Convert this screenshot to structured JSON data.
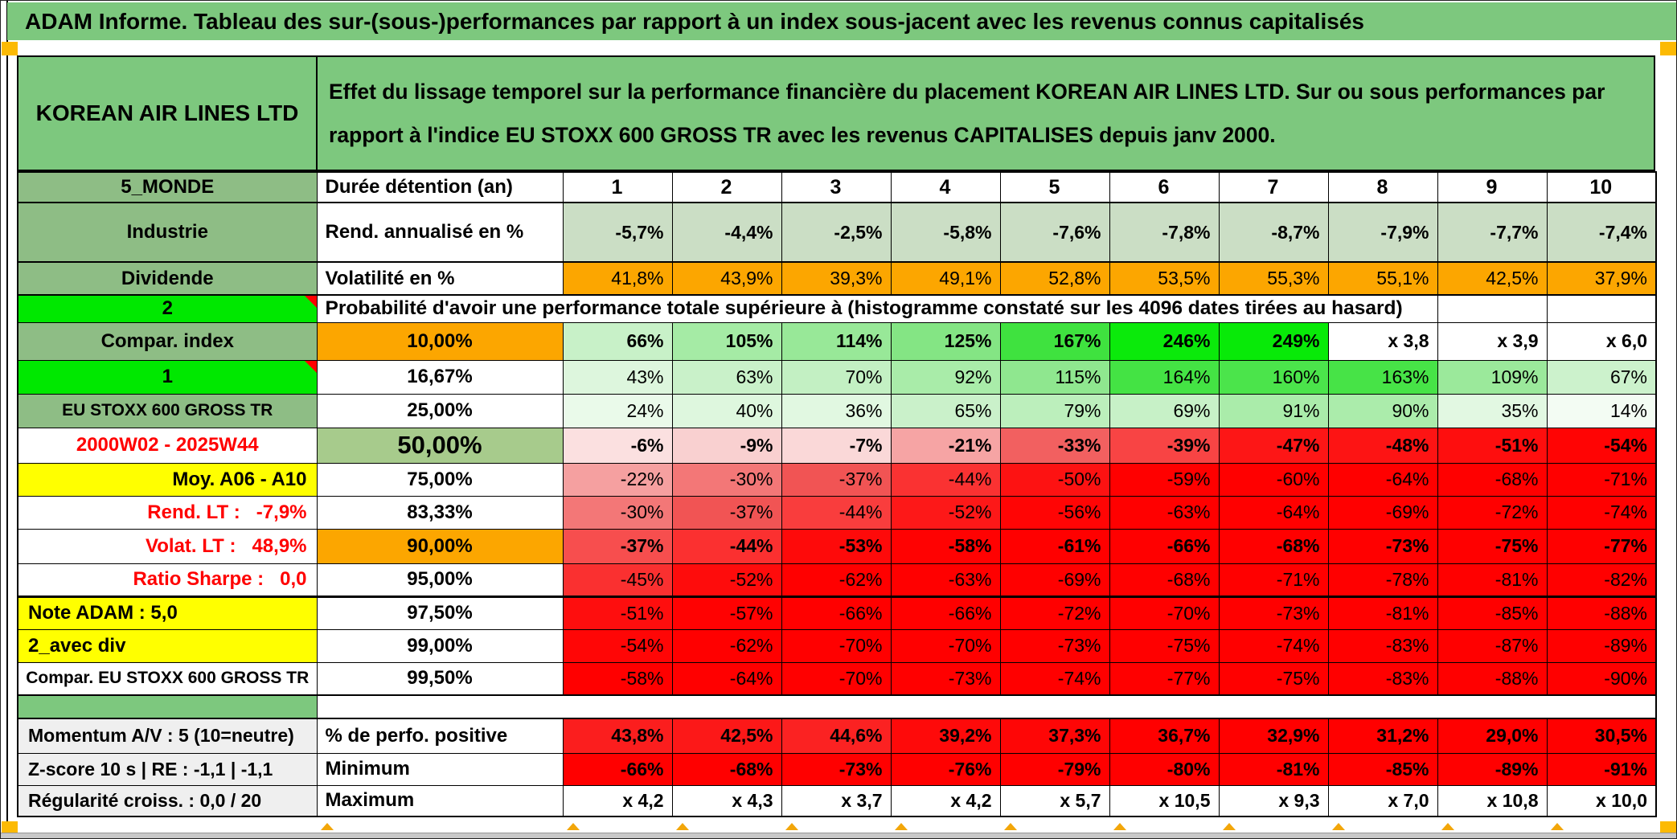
{
  "title": "ADAM Informe. Tableau des sur-(sous-)performances par rapport à un index sous-jacent avec les revenus connus capitalisés",
  "header": {
    "instrument": "KOREAN AIR LINES LTD",
    "description": "Effet du lissage temporel sur la performance financière du placement KOREAN AIR LINES LTD. Sur ou sous performances par rapport à l'indice EU STOXX 600 GROSS TR avec les revenus CAPITALISES depuis janv 2000."
  },
  "colors": {
    "header_green": "#7DC87E",
    "label_green": "#8EBD85",
    "bright_green": "#00E800",
    "orange": "#FCA600",
    "yellow": "#FFFF00",
    "sage": "#A7CB8C",
    "muted_green_row": "#CBDEC5",
    "full_red": "#FF0000",
    "gray_label": "#EFEFEF",
    "marker_orange": "#FCBA04"
  },
  "table": {
    "prob_banner": "Probabilité d'avoir une performance totale supérieure à (histogramme constaté sur les 4096 dates tirées au hasard)",
    "rows": [
      {
        "label": {
          "t": "5_MONDE",
          "bg": "#8EBD85",
          "a": "c"
        },
        "mid": {
          "t": "Durée détention (an)",
          "bg": "#FFFFFF",
          "a": "l"
        },
        "header_cells": true,
        "cells": [
          [
            "1",
            "#FFFFFF",
            1
          ],
          [
            "2",
            "#FFFFFF",
            1
          ],
          [
            "3",
            "#FFFFFF",
            1
          ],
          [
            "4",
            "#FFFFFF",
            1
          ],
          [
            "5",
            "#FFFFFF",
            1
          ],
          [
            "6",
            "#FFFFFF",
            1
          ],
          [
            "7",
            "#FFFFFF",
            1
          ],
          [
            "8",
            "#FFFFFF",
            1
          ],
          [
            "9",
            "#FFFFFF",
            1
          ],
          [
            "10",
            "#FFFFFF",
            1
          ]
        ]
      },
      {
        "label": {
          "t": "Industrie",
          "bg": "#8EBD85",
          "a": "c"
        },
        "mid": {
          "t": "Rend. annualisé en %",
          "bg": "#FFFFFF",
          "a": "l"
        },
        "cells": [
          [
            "-5,7%",
            "#CBDEC5",
            1
          ],
          [
            "-4,4%",
            "#CBDEC5",
            1
          ],
          [
            "-2,5%",
            "#CBDEC5",
            1
          ],
          [
            "-5,8%",
            "#CBDEC5",
            1
          ],
          [
            "-7,6%",
            "#CBDEC5",
            1
          ],
          [
            "-7,8%",
            "#CBDEC5",
            1
          ],
          [
            "-8,7%",
            "#CBDEC5",
            1
          ],
          [
            "-7,9%",
            "#CBDEC5",
            1
          ],
          [
            "-7,7%",
            "#CBDEC5",
            1
          ],
          [
            "-7,4%",
            "#CBDEC5",
            1
          ]
        ]
      },
      {
        "label": {
          "t": "Dividende",
          "bg": "#8EBD85",
          "a": "c"
        },
        "mid": {
          "t": "Volatilité en %",
          "bg": "#FFFFFF",
          "a": "l"
        },
        "cells": [
          [
            "41,8%",
            "#FCA600",
            0
          ],
          [
            "43,9%",
            "#FCA600",
            0
          ],
          [
            "39,3%",
            "#FCA600",
            0
          ],
          [
            "49,1%",
            "#FCA600",
            0
          ],
          [
            "52,8%",
            "#FCA600",
            0
          ],
          [
            "53,5%",
            "#FCA600",
            0
          ],
          [
            "55,3%",
            "#FCA600",
            0
          ],
          [
            "55,1%",
            "#FCA600",
            0
          ],
          [
            "42,5%",
            "#FCA600",
            0
          ],
          [
            "37,9%",
            "#FCA600",
            0
          ]
        ]
      },
      {
        "kind": "banner",
        "label": {
          "t": "2",
          "bg": "#00E800",
          "a": "c",
          "tri": 1
        },
        "empty_cells": 2
      },
      {
        "label": {
          "t": "Compar. index",
          "bg": "#8EBD85",
          "a": "c"
        },
        "mid": {
          "t": "10,00%",
          "bg": "#FCA600",
          "a": "c"
        },
        "cells": [
          [
            "66%",
            "#C8F1C8",
            1
          ],
          [
            "105%",
            "#A5EBA5",
            1
          ],
          [
            "114%",
            "#98E898",
            1
          ],
          [
            "125%",
            "#84E584",
            1
          ],
          [
            "167%",
            "#3FE23F",
            1
          ],
          [
            "246%",
            "#0BEA0B",
            1
          ],
          [
            "249%",
            "#08EA08",
            1
          ],
          [
            "x 3,8",
            "#FFFFFF",
            1
          ],
          [
            "x 3,9",
            "#FFFFFF",
            1
          ],
          [
            "x 6,0",
            "#FFFFFF",
            1
          ]
        ]
      },
      {
        "label": {
          "t": "1",
          "bg": "#00E800",
          "a": "c",
          "tri": 1
        },
        "mid": {
          "t": "16,67%",
          "bg": "#FFFFFF",
          "a": "c"
        },
        "cells": [
          [
            "43%",
            "#DDF6DD",
            0
          ],
          [
            "63%",
            "#C9F1C9",
            0
          ],
          [
            "70%",
            "#C3F0C3",
            0
          ],
          [
            "92%",
            "#A9ECA9",
            0
          ],
          [
            "115%",
            "#8FE78F",
            0
          ],
          [
            "164%",
            "#44E344",
            0
          ],
          [
            "160%",
            "#4BE44B",
            0
          ],
          [
            "163%",
            "#47E347",
            0
          ],
          [
            "109%",
            "#9BE99B",
            0
          ],
          [
            "67%",
            "#CCF2CC",
            0
          ]
        ]
      },
      {
        "label": {
          "t": "EU STOXX 600 GROSS TR",
          "bg": "#8EBD85",
          "a": "c",
          "sz": 1
        },
        "mid": {
          "t": "25,00%",
          "bg": "#FFFFFF",
          "a": "c"
        },
        "cells": [
          [
            "24%",
            "#EAFAEA",
            0
          ],
          [
            "40%",
            "#DEF7DE",
            0
          ],
          [
            "36%",
            "#E1F8E1",
            0
          ],
          [
            "65%",
            "#CAF1CA",
            0
          ],
          [
            "79%",
            "#BCEFBC",
            0
          ],
          [
            "69%",
            "#C7F1C7",
            0
          ],
          [
            "91%",
            "#AAECAA",
            0
          ],
          [
            "90%",
            "#ABECAB",
            0
          ],
          [
            "35%",
            "#E2F8E2",
            0
          ],
          [
            "14%",
            "#F3FCF3",
            0
          ]
        ]
      },
      {
        "label": {
          "t": "2000W02 - 2025W44",
          "bg": "#FFFFFF",
          "fg": "#FF0000",
          "a": "c"
        },
        "mid": {
          "t": "50,00%",
          "bg": "#A7CB8C",
          "a": "c",
          "big": 1
        },
        "cells": [
          [
            "-6%",
            "#FBE0E0",
            1
          ],
          [
            "-9%",
            "#F9D0D0",
            1
          ],
          [
            "-7%",
            "#FAD8D8",
            1
          ],
          [
            "-21%",
            "#F6A4A4",
            1
          ],
          [
            "-33%",
            "#F26060",
            1
          ],
          [
            "-39%",
            "#F84444",
            1
          ],
          [
            "-47%",
            "#FD1616",
            1
          ],
          [
            "-48%",
            "#FD1414",
            1
          ],
          [
            "-51%",
            "#FE0E0E",
            1
          ],
          [
            "-54%",
            "#FF0404",
            1
          ]
        ]
      },
      {
        "label": {
          "t": "Moy. A06 - A10",
          "bg": "#FFFF00",
          "a": "r"
        },
        "mid": {
          "t": "75,00%",
          "bg": "#FFFFFF",
          "a": "c"
        },
        "cells": [
          [
            "-22%",
            "#F5A0A0",
            0
          ],
          [
            "-30%",
            "#F37777",
            0
          ],
          [
            "-37%",
            "#F15454",
            0
          ],
          [
            "-44%",
            "#FA3232",
            0
          ],
          [
            "-50%",
            "#FD1212",
            0
          ],
          [
            "-59%",
            "#FF0000",
            0
          ],
          [
            "-60%",
            "#FF0000",
            0
          ],
          [
            "-64%",
            "#FF0000",
            0
          ],
          [
            "-68%",
            "#FF0000",
            0
          ],
          [
            "-71%",
            "#FF0000",
            0
          ]
        ]
      },
      {
        "label": {
          "t": "Rend. LT :   -7,9%",
          "bg": "#FFFFFF",
          "fg": "#FF0000",
          "a": "r"
        },
        "mid": {
          "t": "83,33%",
          "bg": "#FFFFFF",
          "a": "c"
        },
        "cells": [
          [
            "-30%",
            "#F37777",
            0
          ],
          [
            "-37%",
            "#F15454",
            0
          ],
          [
            "-44%",
            "#F93D3D",
            0
          ],
          [
            "-52%",
            "#FD1818",
            0
          ],
          [
            "-56%",
            "#FF0505",
            0
          ],
          [
            "-63%",
            "#FF0000",
            0
          ],
          [
            "-64%",
            "#FF0000",
            0
          ],
          [
            "-69%",
            "#FF0000",
            0
          ],
          [
            "-72%",
            "#FF0000",
            0
          ],
          [
            "-74%",
            "#FF0000",
            0
          ]
        ]
      },
      {
        "label": {
          "t": "Volat. LT :   48,9%",
          "bg": "#FFFFFF",
          "fg": "#FF0000",
          "a": "r"
        },
        "mid": {
          "t": "90,00%",
          "bg": "#FCA600",
          "a": "c"
        },
        "cells": [
          [
            "-37%",
            "#F74E4E",
            1
          ],
          [
            "-44%",
            "#FB3030",
            1
          ],
          [
            "-53%",
            "#FE0A0A",
            1
          ],
          [
            "-58%",
            "#FF0202",
            1
          ],
          [
            "-61%",
            "#FF0000",
            1
          ],
          [
            "-66%",
            "#FF0000",
            1
          ],
          [
            "-68%",
            "#FF0000",
            1
          ],
          [
            "-73%",
            "#FF0000",
            1
          ],
          [
            "-75%",
            "#FF0000",
            1
          ],
          [
            "-77%",
            "#FF0000",
            1
          ]
        ]
      },
      {
        "label": {
          "t": "Ratio Sharpe :   0,0",
          "bg": "#FFFFFF",
          "fg": "#FF0000",
          "a": "r"
        },
        "mid": {
          "t": "95,00%",
          "bg": "#FFFFFF",
          "a": "c"
        },
        "cells": [
          [
            "-45%",
            "#FA3030",
            0
          ],
          [
            "-52%",
            "#FE0C0C",
            0
          ],
          [
            "-62%",
            "#FF0000",
            0
          ],
          [
            "-63%",
            "#FF0000",
            0
          ],
          [
            "-69%",
            "#FF0000",
            0
          ],
          [
            "-68%",
            "#FF0000",
            0
          ],
          [
            "-71%",
            "#FF0000",
            0
          ],
          [
            "-78%",
            "#FF0000",
            0
          ],
          [
            "-81%",
            "#FF0000",
            0
          ],
          [
            "-82%",
            "#FF0000",
            0
          ]
        ]
      },
      {
        "label": {
          "t": "Note ADAM : 5,0",
          "bg": "#FFFF00",
          "a": "l"
        },
        "mid": {
          "t": "97,50%",
          "bg": "#FFFFFF",
          "a": "c"
        },
        "cells": [
          [
            "-51%",
            "#FE0E0E",
            0
          ],
          [
            "-57%",
            "#FF0202",
            0
          ],
          [
            "-66%",
            "#FF0000",
            0
          ],
          [
            "-66%",
            "#FF0000",
            0
          ],
          [
            "-72%",
            "#FF0000",
            0
          ],
          [
            "-70%",
            "#FF0000",
            0
          ],
          [
            "-73%",
            "#FF0000",
            0
          ],
          [
            "-81%",
            "#FF0000",
            0
          ],
          [
            "-85%",
            "#FF0000",
            0
          ],
          [
            "-88%",
            "#FF0000",
            0
          ]
        ]
      },
      {
        "label": {
          "t": "2_avec div",
          "bg": "#FFFF00",
          "a": "l"
        },
        "mid": {
          "t": "99,00%",
          "bg": "#FFFFFF",
          "a": "c"
        },
        "cells": [
          [
            "-54%",
            "#FF0606",
            0
          ],
          [
            "-62%",
            "#FF0000",
            0
          ],
          [
            "-70%",
            "#FF0000",
            0
          ],
          [
            "-70%",
            "#FF0000",
            0
          ],
          [
            "-73%",
            "#FF0000",
            0
          ],
          [
            "-75%",
            "#FF0000",
            0
          ],
          [
            "-74%",
            "#FF0000",
            0
          ],
          [
            "-83%",
            "#FF0000",
            0
          ],
          [
            "-87%",
            "#FF0000",
            0
          ],
          [
            "-89%",
            "#FF0000",
            0
          ]
        ]
      },
      {
        "label": {
          "t": "Compar. EU STOXX 600 GROSS TR",
          "bg": "#FFFFFF",
          "a": "c",
          "sz": 1
        },
        "mid": {
          "t": "99,50%",
          "bg": "#FFFFFF",
          "a": "c"
        },
        "cells": [
          [
            "-58%",
            "#FF0000",
            0
          ],
          [
            "-64%",
            "#FF0000",
            0
          ],
          [
            "-70%",
            "#FF0000",
            0
          ],
          [
            "-73%",
            "#FF0000",
            0
          ],
          [
            "-74%",
            "#FF0000",
            0
          ],
          [
            "-77%",
            "#FF0000",
            0
          ],
          [
            "-75%",
            "#FF0000",
            0
          ],
          [
            "-83%",
            "#FF0000",
            0
          ],
          [
            "-88%",
            "#FF0000",
            0
          ],
          [
            "-90%",
            "#FF0000",
            0
          ]
        ]
      },
      {
        "kind": "sep",
        "label": {
          "t": "",
          "bg": "#7DC87E",
          "a": "c"
        }
      },
      {
        "label": {
          "t": "Momentum A/V : 5 (10=neutre)",
          "bg": "#EFEFEF",
          "a": "l",
          "gray": 1
        },
        "mid": {
          "t": "% de perfo. positive",
          "bg": "#FFFFFF",
          "a": "l"
        },
        "cells": [
          [
            "43,8%",
            "#FB1E1E",
            1
          ],
          [
            "42,5%",
            "#FC1818",
            1
          ],
          [
            "44,6%",
            "#FB2222",
            1
          ],
          [
            "39,2%",
            "#FE0A0A",
            1
          ],
          [
            "37,3%",
            "#FE0606",
            1
          ],
          [
            "36,7%",
            "#FF0000",
            1
          ],
          [
            "32,9%",
            "#FF0000",
            1
          ],
          [
            "31,2%",
            "#FF0000",
            1
          ],
          [
            "29,0%",
            "#FF0000",
            1
          ],
          [
            "30,5%",
            "#FF0000",
            1
          ]
        ]
      },
      {
        "label": {
          "t": "Z-score 10 s | RE : -1,1 | -1,1",
          "bg": "#EFEFEF",
          "a": "l",
          "gray": 1
        },
        "mid": {
          "t": "Minimum",
          "bg": "#FFFFFF",
          "a": "l"
        },
        "cells": [
          [
            "-66%",
            "#FF0000",
            1
          ],
          [
            "-68%",
            "#FF0000",
            1
          ],
          [
            "-73%",
            "#FF0000",
            1
          ],
          [
            "-76%",
            "#FF0000",
            1
          ],
          [
            "-79%",
            "#FF0000",
            1
          ],
          [
            "-80%",
            "#FF0000",
            1
          ],
          [
            "-81%",
            "#FF0000",
            1
          ],
          [
            "-85%",
            "#FF0000",
            1
          ],
          [
            "-89%",
            "#FF0000",
            1
          ],
          [
            "-91%",
            "#FF0000",
            1
          ]
        ]
      },
      {
        "label": {
          "t": "Régularité croiss. : 0,0 / 20",
          "bg": "#EFEFEF",
          "a": "l",
          "gray": 1
        },
        "mid": {
          "t": "Maximum",
          "bg": "#FFFFFF",
          "a": "l"
        },
        "cells": [
          [
            "x 4,2",
            "#FFFFFF",
            1
          ],
          [
            "x 4,3",
            "#FFFFFF",
            1
          ],
          [
            "x 3,7",
            "#FFFFFF",
            1
          ],
          [
            "x 4,2",
            "#FFFFFF",
            1
          ],
          [
            "x 5,7",
            "#FFFFFF",
            1
          ],
          [
            "x 10,5",
            "#FFFFFF",
            1
          ],
          [
            "x 9,3",
            "#FFFFFF",
            1
          ],
          [
            "x 7,0",
            "#FFFFFF",
            1
          ],
          [
            "x 10,8",
            "#FFFFFF",
            1
          ],
          [
            "x 10,0",
            "#FFFFFF",
            1
          ]
        ]
      }
    ]
  }
}
